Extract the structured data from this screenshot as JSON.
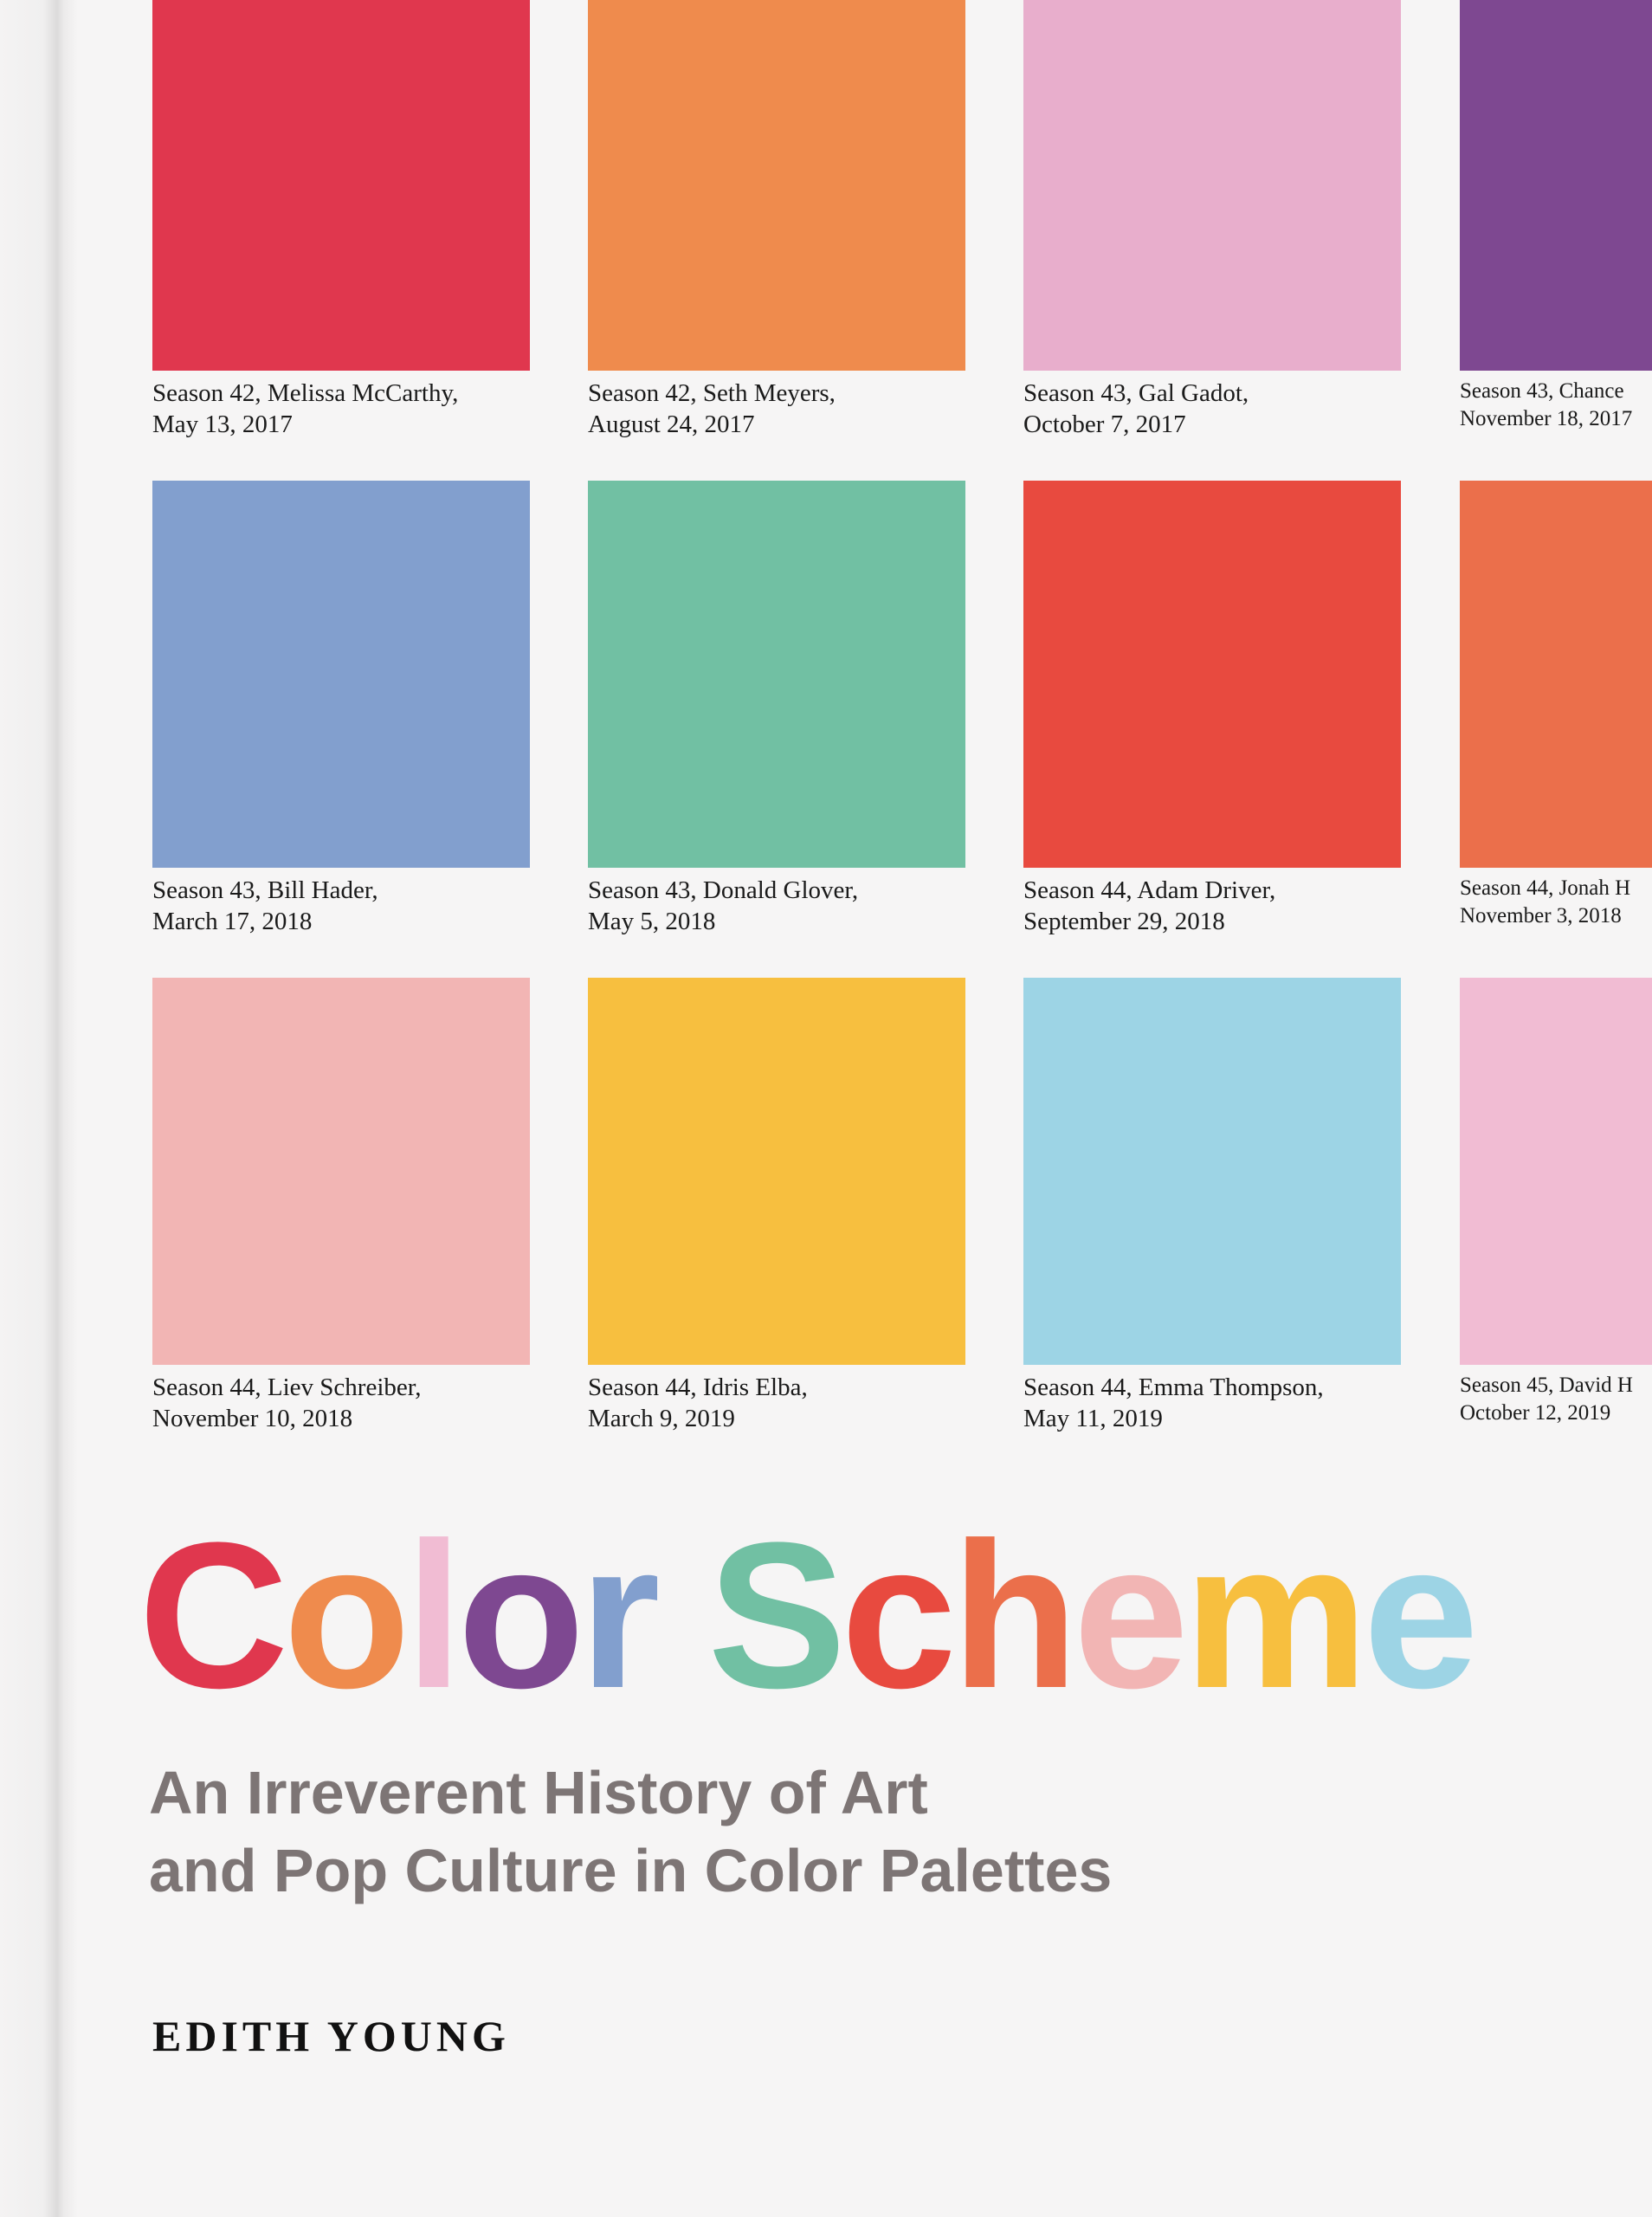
{
  "swatches": [
    {
      "color": "#e0374e",
      "label_line1": "Season 42, Melissa McCarthy,",
      "label_line2": "May 13, 2017"
    },
    {
      "color": "#ef8b4d",
      "label_line1": "Season 42, Seth Meyers,",
      "label_line2": "August 24, 2017"
    },
    {
      "color": "#e8aecc",
      "label_line1": "Season 43, Gal Gadot,",
      "label_line2": "October 7, 2017"
    },
    {
      "color": "#7e4891",
      "label_line1": "Season 43, Chance",
      "label_line2": "November 18, 2017"
    },
    {
      "color": "#829fce",
      "label_line1": "Season 43, Bill Hader,",
      "label_line2": "March 17, 2018"
    },
    {
      "color": "#71c0a3",
      "label_line1": "Season 43, Donald Glover,",
      "label_line2": "May 5, 2018"
    },
    {
      "color": "#e84a3f",
      "label_line1": "Season 44, Adam Driver,",
      "label_line2": "September 29, 2018"
    },
    {
      "color": "#eb6f4b",
      "label_line1": "Season 44, Jonah H",
      "label_line2": "November 3, 2018"
    },
    {
      "color": "#f2b5b4",
      "label_line1": "Season 44, Liev Schreiber,",
      "label_line2": "November 10, 2018"
    },
    {
      "color": "#f7bf3f",
      "label_line1": "Season 44, Idris Elba,",
      "label_line2": "March 9, 2019"
    },
    {
      "color": "#9dd4e5",
      "label_line1": "Season 44, Emma Thompson,",
      "label_line2": "May 11, 2019"
    },
    {
      "color": "#f1bcd3",
      "label_line1": "Season 45, David H",
      "label_line2": "October 12, 2019"
    }
  ],
  "title": {
    "text": "Color Scheme",
    "letters": [
      {
        "ch": "C",
        "color": "#e0374e"
      },
      {
        "ch": "o",
        "color": "#ef8b4d"
      },
      {
        "ch": "l",
        "color": "#f1bcd3"
      },
      {
        "ch": "o",
        "color": "#7e4891"
      },
      {
        "ch": "r",
        "color": "#829fce"
      },
      {
        "ch": " ",
        "color": "#000000"
      },
      {
        "ch": "S",
        "color": "#71c0a3"
      },
      {
        "ch": "c",
        "color": "#e84a3f"
      },
      {
        "ch": "h",
        "color": "#eb6f4b"
      },
      {
        "ch": "e",
        "color": "#f2b5b4"
      },
      {
        "ch": "m",
        "color": "#f7bf3f"
      },
      {
        "ch": "e",
        "color": "#9dd4e5"
      }
    ]
  },
  "subtitle": {
    "line1": "An Irreverent History of Art",
    "line2": "and Pop Culture in Color Palettes"
  },
  "author": "EDITH YOUNG"
}
